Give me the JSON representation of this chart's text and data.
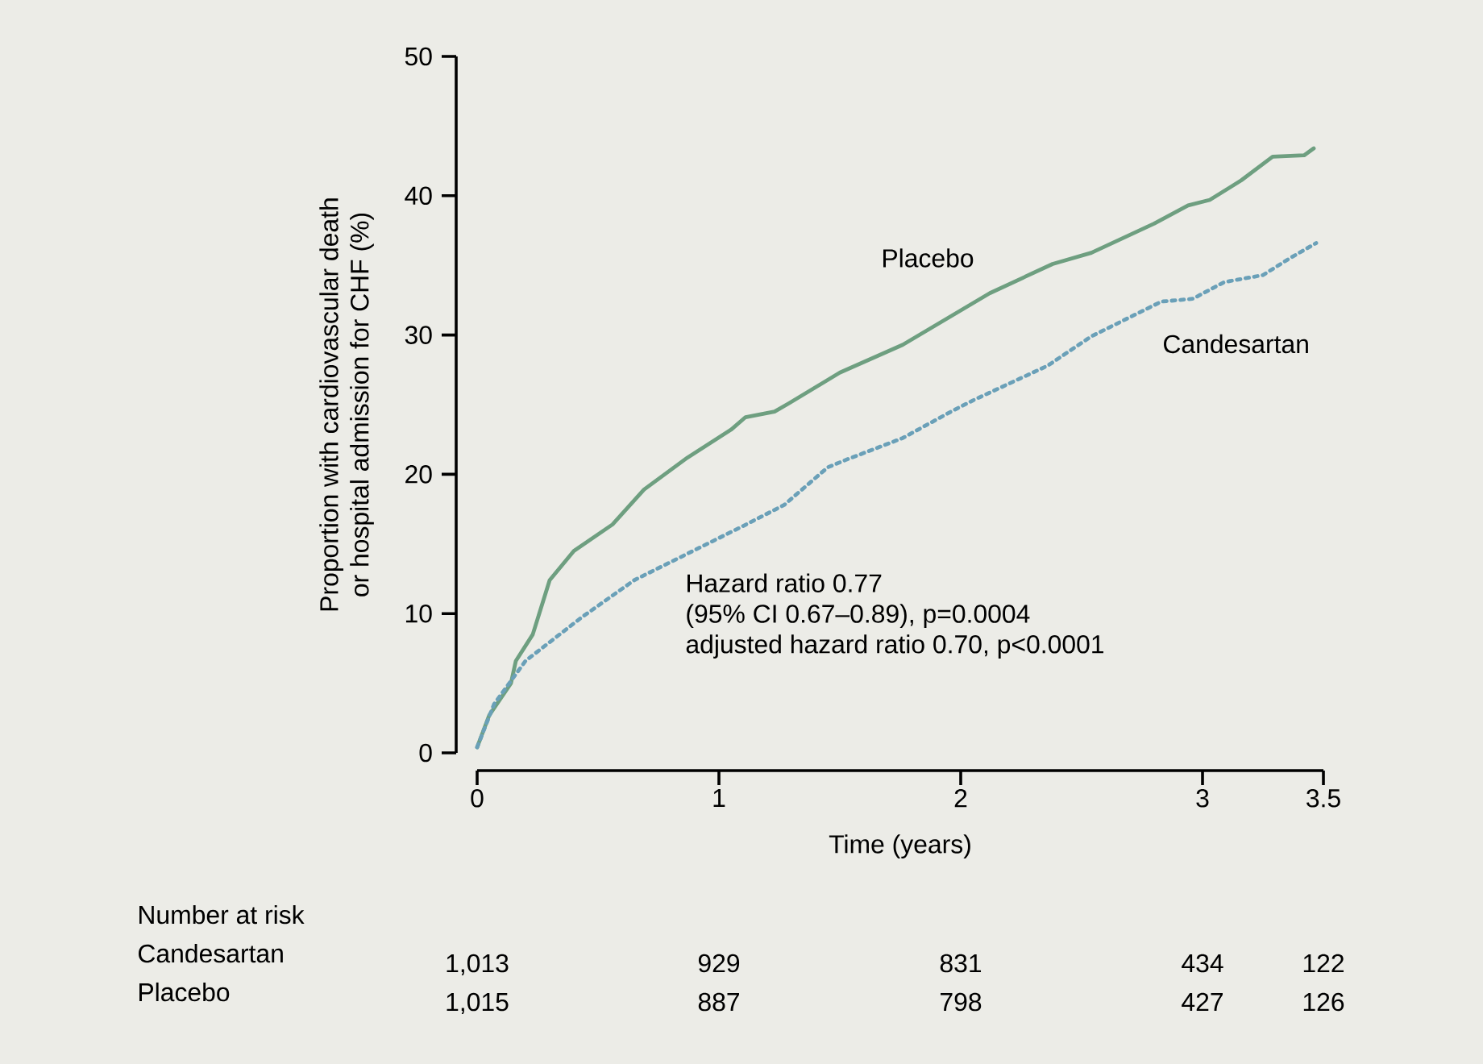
{
  "chart_data": {
    "type": "line",
    "xlabel": "Time (years)",
    "ylabel": "Proportion with cardiovascular death\nor hospital admission for CHF (%)",
    "xlim": [
      0,
      3.5
    ],
    "ylim": [
      0,
      50
    ],
    "xticks": [
      0,
      1,
      2,
      3,
      3.5
    ],
    "yticks": [
      0,
      10,
      20,
      30,
      40,
      50
    ],
    "grid": false,
    "legend": false,
    "marker": "none",
    "series": [
      {
        "name": "Placebo",
        "color": "#6e9f80",
        "line_style": "solid",
        "x": [
          0,
          0.05,
          0.14,
          0.16,
          0.23,
          0.3,
          0.4,
          0.56,
          0.69,
          0.87,
          1.05,
          1.11,
          1.23,
          1.29,
          1.5,
          1.76,
          2.12,
          2.38,
          2.54,
          2.8,
          2.94,
          3.03,
          3.16,
          3.29,
          3.42,
          3.46
        ],
        "values": [
          0.4,
          2.7,
          5.0,
          6.6,
          8.5,
          12.4,
          14.5,
          16.4,
          18.9,
          21.2,
          23.2,
          24.1,
          24.5,
          25.1,
          27.3,
          29.3,
          33.0,
          35.1,
          35.9,
          38.0,
          39.3,
          39.7,
          41.1,
          42.8,
          42.9,
          43.4
        ]
      },
      {
        "name": "Candesartan",
        "color": "#6aa0b8",
        "line_style": "dotted",
        "x": [
          0,
          0.07,
          0.2,
          0.43,
          0.65,
          0.87,
          1.09,
          1.27,
          1.45,
          1.52,
          1.76,
          1.96,
          2.05,
          2.36,
          2.54,
          2.83,
          2.96,
          3.09,
          3.25,
          3.36,
          3.47
        ],
        "values": [
          0.4,
          3.5,
          6.6,
          9.7,
          12.4,
          14.3,
          16.2,
          17.8,
          20.5,
          21.0,
          22.6,
          24.5,
          25.3,
          27.8,
          29.9,
          32.4,
          32.6,
          33.8,
          34.3,
          35.5,
          36.6
        ]
      }
    ],
    "annotations": [
      "Hazard ratio 0.77",
      "(95% CI 0.67–0.89), p=0.0004",
      "adjusted hazard ratio 0.70, p<0.0001",
      "Number at risk",
      "Candesartan",
      "Placebo",
      "1,013",
      "929",
      "831",
      "434",
      "122",
      "1,015",
      "887",
      "798",
      "427",
      "126"
    ]
  }
}
